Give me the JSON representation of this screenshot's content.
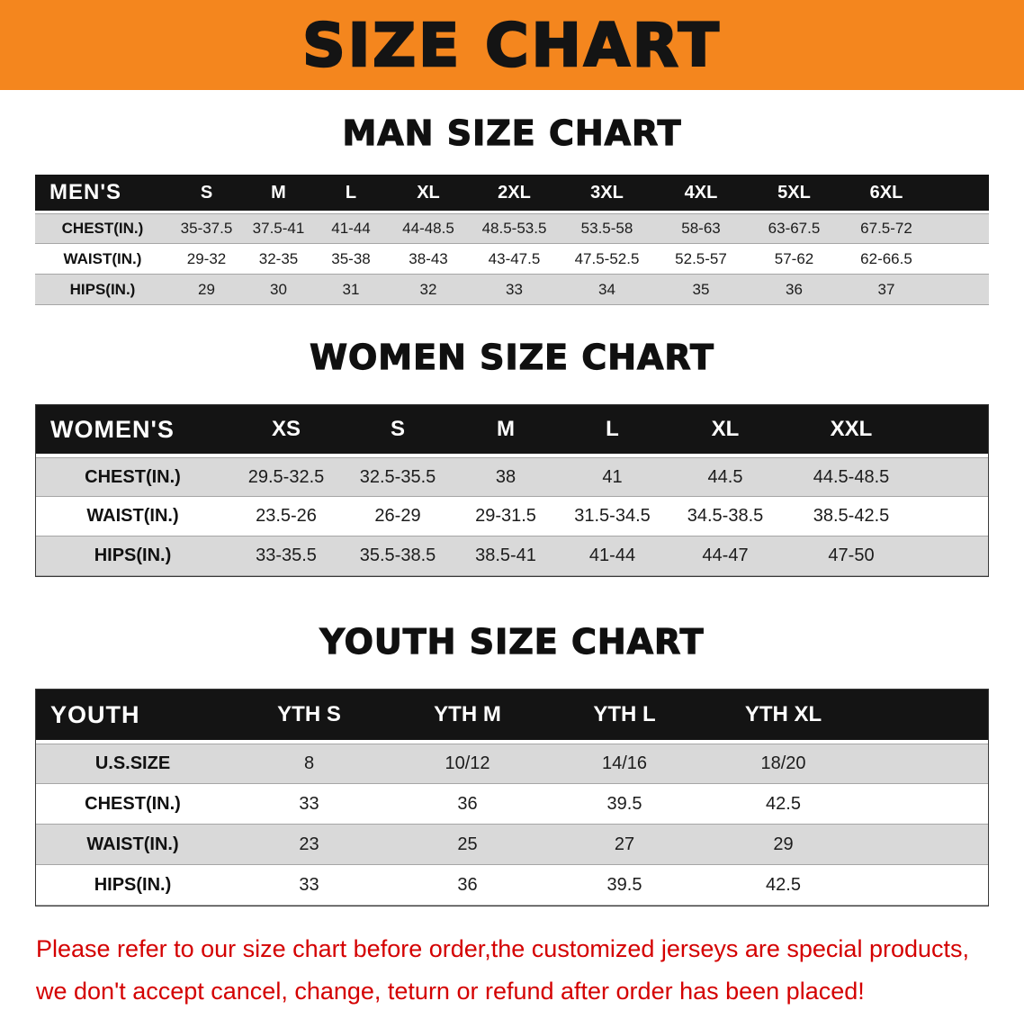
{
  "banner": {
    "title": "SIZE CHART"
  },
  "chart_data": [
    {
      "type": "table",
      "title": "MAN SIZE CHART",
      "columns": [
        "MEN'S",
        "S",
        "M",
        "L",
        "XL",
        "2XL",
        "3XL",
        "4XL",
        "5XL",
        "6XL"
      ],
      "rows": [
        [
          "CHEST(IN.)",
          "35-37.5",
          "37.5-41",
          "41-44",
          "44-48.5",
          "48.5-53.5",
          "53.5-58",
          "58-63",
          "63-67.5",
          "67.5-72"
        ],
        [
          "WAIST(IN.)",
          "29-32",
          "32-35",
          "35-38",
          "38-43",
          "43-47.5",
          "47.5-52.5",
          "52.5-57",
          "57-62",
          "62-66.5"
        ],
        [
          "HIPS(IN.)",
          "29",
          "30",
          "31",
          "32",
          "33",
          "34",
          "35",
          "36",
          "37"
        ]
      ]
    },
    {
      "type": "table",
      "title": "WOMEN SIZE CHART",
      "columns": [
        "WOMEN'S",
        "XS",
        "S",
        "M",
        "L",
        "XL",
        "XXL"
      ],
      "rows": [
        [
          "CHEST(IN.)",
          "29.5-32.5",
          "32.5-35.5",
          "38",
          "41",
          "44.5",
          "44.5-48.5"
        ],
        [
          "WAIST(IN.)",
          "23.5-26",
          "26-29",
          "29-31.5",
          "31.5-34.5",
          "34.5-38.5",
          "38.5-42.5"
        ],
        [
          "HIPS(IN.)",
          "33-35.5",
          "35.5-38.5",
          "38.5-41",
          "41-44",
          "44-47",
          "47-50"
        ]
      ]
    },
    {
      "type": "table",
      "title": "YOUTH SIZE CHART",
      "columns": [
        "YOUTH",
        "YTH S",
        "YTH M",
        "YTH L",
        "YTH XL"
      ],
      "rows": [
        [
          "U.S.SIZE",
          "8",
          "10/12",
          "14/16",
          "18/20"
        ],
        [
          "CHEST(IN.)",
          "33",
          "36",
          "39.5",
          "42.5"
        ],
        [
          "WAIST(IN.)",
          "23",
          "25",
          "27",
          "29"
        ],
        [
          "HIPS(IN.)",
          "33",
          "36",
          "39.5",
          "42.5"
        ]
      ]
    }
  ],
  "disclaimer": {
    "line1": "Please refer to our size chart before order,the customized jerseys are special products,",
    "line2": "we don't accept cancel, change, teturn or refund after order has been placed!"
  },
  "colors": {
    "banner_bg": "#f4861e",
    "table_header_bg": "#141414",
    "row_stripe": "#d9d9d9",
    "disclaimer_text": "#d40000"
  }
}
